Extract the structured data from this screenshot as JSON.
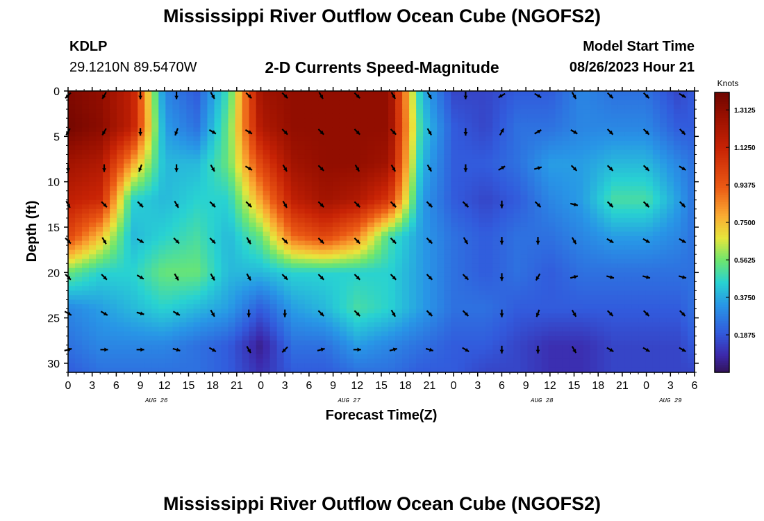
{
  "header": {
    "title": "Mississippi River Outflow Ocean Cube (NGOFS2)",
    "station_id": "KDLP",
    "station_coords": "29.1210N  89.5470W",
    "subtitle": "2-D Currents Speed-Magnitude",
    "model_start_label": "Model Start Time",
    "model_start_time": "08/26/2023 Hour 21"
  },
  "footer": {
    "title": "Mississippi River Outflow Ocean Cube (NGOFS2)"
  },
  "chart_data": {
    "type": "heatmap",
    "xlabel": "Forecast Time(Z)",
    "ylabel": "Depth (ft)",
    "x_range_hours": [
      0,
      78
    ],
    "y_range": [
      0,
      31
    ],
    "y_ticks": [
      0,
      5,
      10,
      15,
      20,
      25,
      30
    ],
    "x_tick_labels": [
      "0",
      "3",
      "6",
      "9",
      "12",
      "15",
      "18",
      "21",
      "0",
      "3",
      "6",
      "9",
      "12",
      "15",
      "18",
      "21",
      "0",
      "3",
      "6",
      "9",
      "12",
      "15",
      "18",
      "21",
      "0",
      "3",
      "6"
    ],
    "date_labels": [
      {
        "text": "AUG 26",
        "hour": 11
      },
      {
        "text": "AUG 27",
        "hour": 35
      },
      {
        "text": "AUG 28",
        "hour": 59
      },
      {
        "text": "AUG 29",
        "hour": 75
      }
    ],
    "colorbar": {
      "unit": "Knots",
      "min": 0.0,
      "max": 1.4,
      "ticks": [
        "1.3125",
        "1.1250",
        "0.9375",
        "0.7500",
        "0.5625",
        "0.3750",
        "0.1875"
      ]
    },
    "speed_grid": {
      "hours": [
        0,
        4,
        8,
        12,
        16,
        20,
        24,
        28,
        32,
        36,
        40,
        44,
        48,
        52,
        56,
        60,
        64,
        68,
        72,
        76,
        78
      ],
      "depths": [
        0,
        4,
        8,
        12,
        16,
        20,
        24,
        28,
        31
      ],
      "values": [
        [
          1.35,
          1.3,
          1.15,
          0.3,
          0.2,
          0.5,
          1.25,
          1.3,
          1.3,
          1.3,
          1.3,
          0.4,
          0.15,
          0.15,
          0.2,
          0.2,
          0.3,
          0.25,
          0.25,
          0.15,
          0.2
        ],
        [
          1.38,
          1.32,
          1.15,
          0.35,
          0.25,
          0.55,
          1.2,
          1.3,
          1.3,
          1.3,
          1.3,
          0.45,
          0.2,
          0.15,
          0.25,
          0.25,
          0.3,
          0.3,
          0.3,
          0.2,
          0.2
        ],
        [
          1.25,
          1.2,
          0.8,
          0.4,
          0.4,
          0.55,
          1.0,
          1.25,
          1.3,
          1.3,
          1.25,
          0.4,
          0.2,
          0.2,
          0.25,
          0.35,
          0.35,
          0.4,
          0.4,
          0.3,
          0.25
        ],
        [
          1.15,
          1.1,
          0.45,
          0.4,
          0.45,
          0.45,
          0.8,
          1.15,
          1.25,
          1.2,
          1.05,
          0.35,
          0.2,
          0.15,
          0.2,
          0.3,
          0.35,
          0.5,
          0.5,
          0.35,
          0.25
        ],
        [
          1.0,
          0.75,
          0.4,
          0.45,
          0.5,
          0.4,
          0.55,
          0.9,
          1.0,
          0.85,
          0.5,
          0.35,
          0.25,
          0.2,
          0.25,
          0.25,
          0.3,
          0.35,
          0.35,
          0.3,
          0.25
        ],
        [
          0.55,
          0.45,
          0.45,
          0.55,
          0.55,
          0.4,
          0.4,
          0.45,
          0.45,
          0.45,
          0.45,
          0.35,
          0.25,
          0.2,
          0.25,
          0.2,
          0.25,
          0.25,
          0.25,
          0.25,
          0.25
        ],
        [
          0.3,
          0.35,
          0.4,
          0.45,
          0.4,
          0.35,
          0.2,
          0.35,
          0.4,
          0.5,
          0.45,
          0.35,
          0.25,
          0.25,
          0.2,
          0.2,
          0.2,
          0.2,
          0.2,
          0.2,
          0.25
        ],
        [
          0.25,
          0.3,
          0.3,
          0.3,
          0.25,
          0.2,
          0.05,
          0.25,
          0.25,
          0.35,
          0.3,
          0.25,
          0.2,
          0.2,
          0.15,
          0.1,
          0.1,
          0.15,
          0.15,
          0.15,
          0.2
        ],
        [
          0.2,
          0.25,
          0.25,
          0.25,
          0.25,
          0.2,
          0.1,
          0.2,
          0.2,
          0.25,
          0.25,
          0.2,
          0.2,
          0.15,
          0.15,
          0.1,
          0.1,
          0.15,
          0.15,
          0.15,
          0.15
        ]
      ]
    },
    "vectors": {
      "hours": [
        0,
        4.5,
        9,
        13.5,
        18,
        22.5,
        27,
        31.5,
        36,
        40.5,
        45,
        49.5,
        54,
        58.5,
        63,
        67.5,
        72,
        76.5
      ],
      "depths": [
        0.5,
        4.5,
        8.5,
        12.5,
        16.5,
        20.5,
        24.5,
        28.5
      ],
      "angles_deg": [
        [
          135,
          120,
          90,
          90,
          60,
          45,
          45,
          60,
          45,
          60,
          60,
          90,
          150,
          30,
          60,
          45,
          45,
          30
        ],
        [
          120,
          120,
          90,
          110,
          30,
          30,
          45,
          45,
          45,
          45,
          60,
          90,
          -60,
          -30,
          30,
          45,
          45,
          45
        ],
        [
          90,
          90,
          110,
          90,
          60,
          30,
          60,
          45,
          60,
          60,
          60,
          90,
          -30,
          -15,
          45,
          45,
          45,
          30
        ],
        [
          60,
          45,
          45,
          60,
          45,
          45,
          60,
          45,
          45,
          45,
          45,
          45,
          90,
          45,
          15,
          45,
          45,
          45
        ],
        [
          45,
          60,
          30,
          45,
          45,
          60,
          45,
          45,
          45,
          45,
          45,
          60,
          90,
          90,
          60,
          30,
          30,
          30
        ],
        [
          45,
          45,
          30,
          60,
          60,
          60,
          45,
          45,
          45,
          45,
          45,
          45,
          90,
          120,
          -15,
          15,
          15,
          15
        ],
        [
          30,
          30,
          15,
          30,
          60,
          90,
          90,
          45,
          45,
          60,
          45,
          45,
          90,
          110,
          60,
          45,
          45,
          45
        ],
        [
          -15,
          0,
          0,
          15,
          30,
          60,
          135,
          -15,
          0,
          -15,
          15,
          30,
          90,
          90,
          60,
          30,
          30,
          30
        ]
      ]
    }
  }
}
